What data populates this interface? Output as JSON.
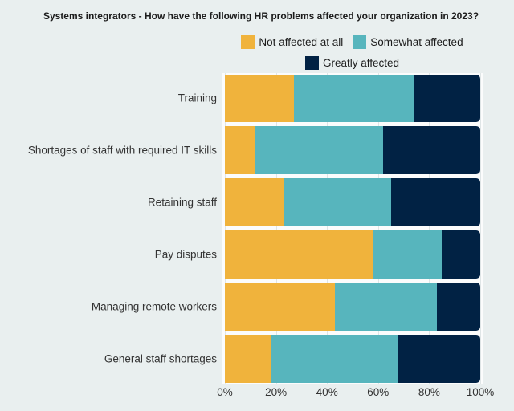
{
  "title": "Systems integrators - How have the following HR problems affected your organization in 2023?",
  "colors": {
    "background": "#e9efef",
    "plot_background": "#fbfcfc",
    "gridline": "#dfe5e6",
    "not_affected": "#f0b33c",
    "somewhat_affected": "#57b5bd",
    "greatly_affected": "#012244",
    "title_text": "#1c1c1c",
    "label_text": "#333333"
  },
  "chart_data": {
    "type": "bar",
    "orientation": "horizontal",
    "stacked": true,
    "title": "Systems integrators - How have the following HR problems affected your organization in 2023?",
    "categories": [
      "Training",
      "Shortages of staff with required IT skills",
      "Retaining staff",
      "Pay disputes",
      "Managing remote workers",
      "General staff shortages"
    ],
    "series": [
      {
        "name": "Not affected at all",
        "color": "#f0b33c",
        "values": [
          27,
          12,
          23,
          58,
          43,
          18
        ]
      },
      {
        "name": "Somewhat affected",
        "color": "#57b5bd",
        "values": [
          47,
          50,
          42,
          27,
          40,
          50
        ]
      },
      {
        "name": "Greatly affected",
        "color": "#012244",
        "values": [
          26,
          38,
          35,
          15,
          17,
          32
        ]
      }
    ],
    "xlabel": "",
    "ylabel": "",
    "xlim": [
      0,
      100
    ],
    "x_tick_labels": [
      "0%",
      "20%",
      "40%",
      "60%",
      "80%",
      "100%"
    ],
    "grid": true,
    "legend_position": "top-center"
  },
  "legend": {
    "rows": [
      [
        "Not affected at all",
        "Somewhat affected"
      ],
      [
        "Greatly affected"
      ]
    ]
  }
}
